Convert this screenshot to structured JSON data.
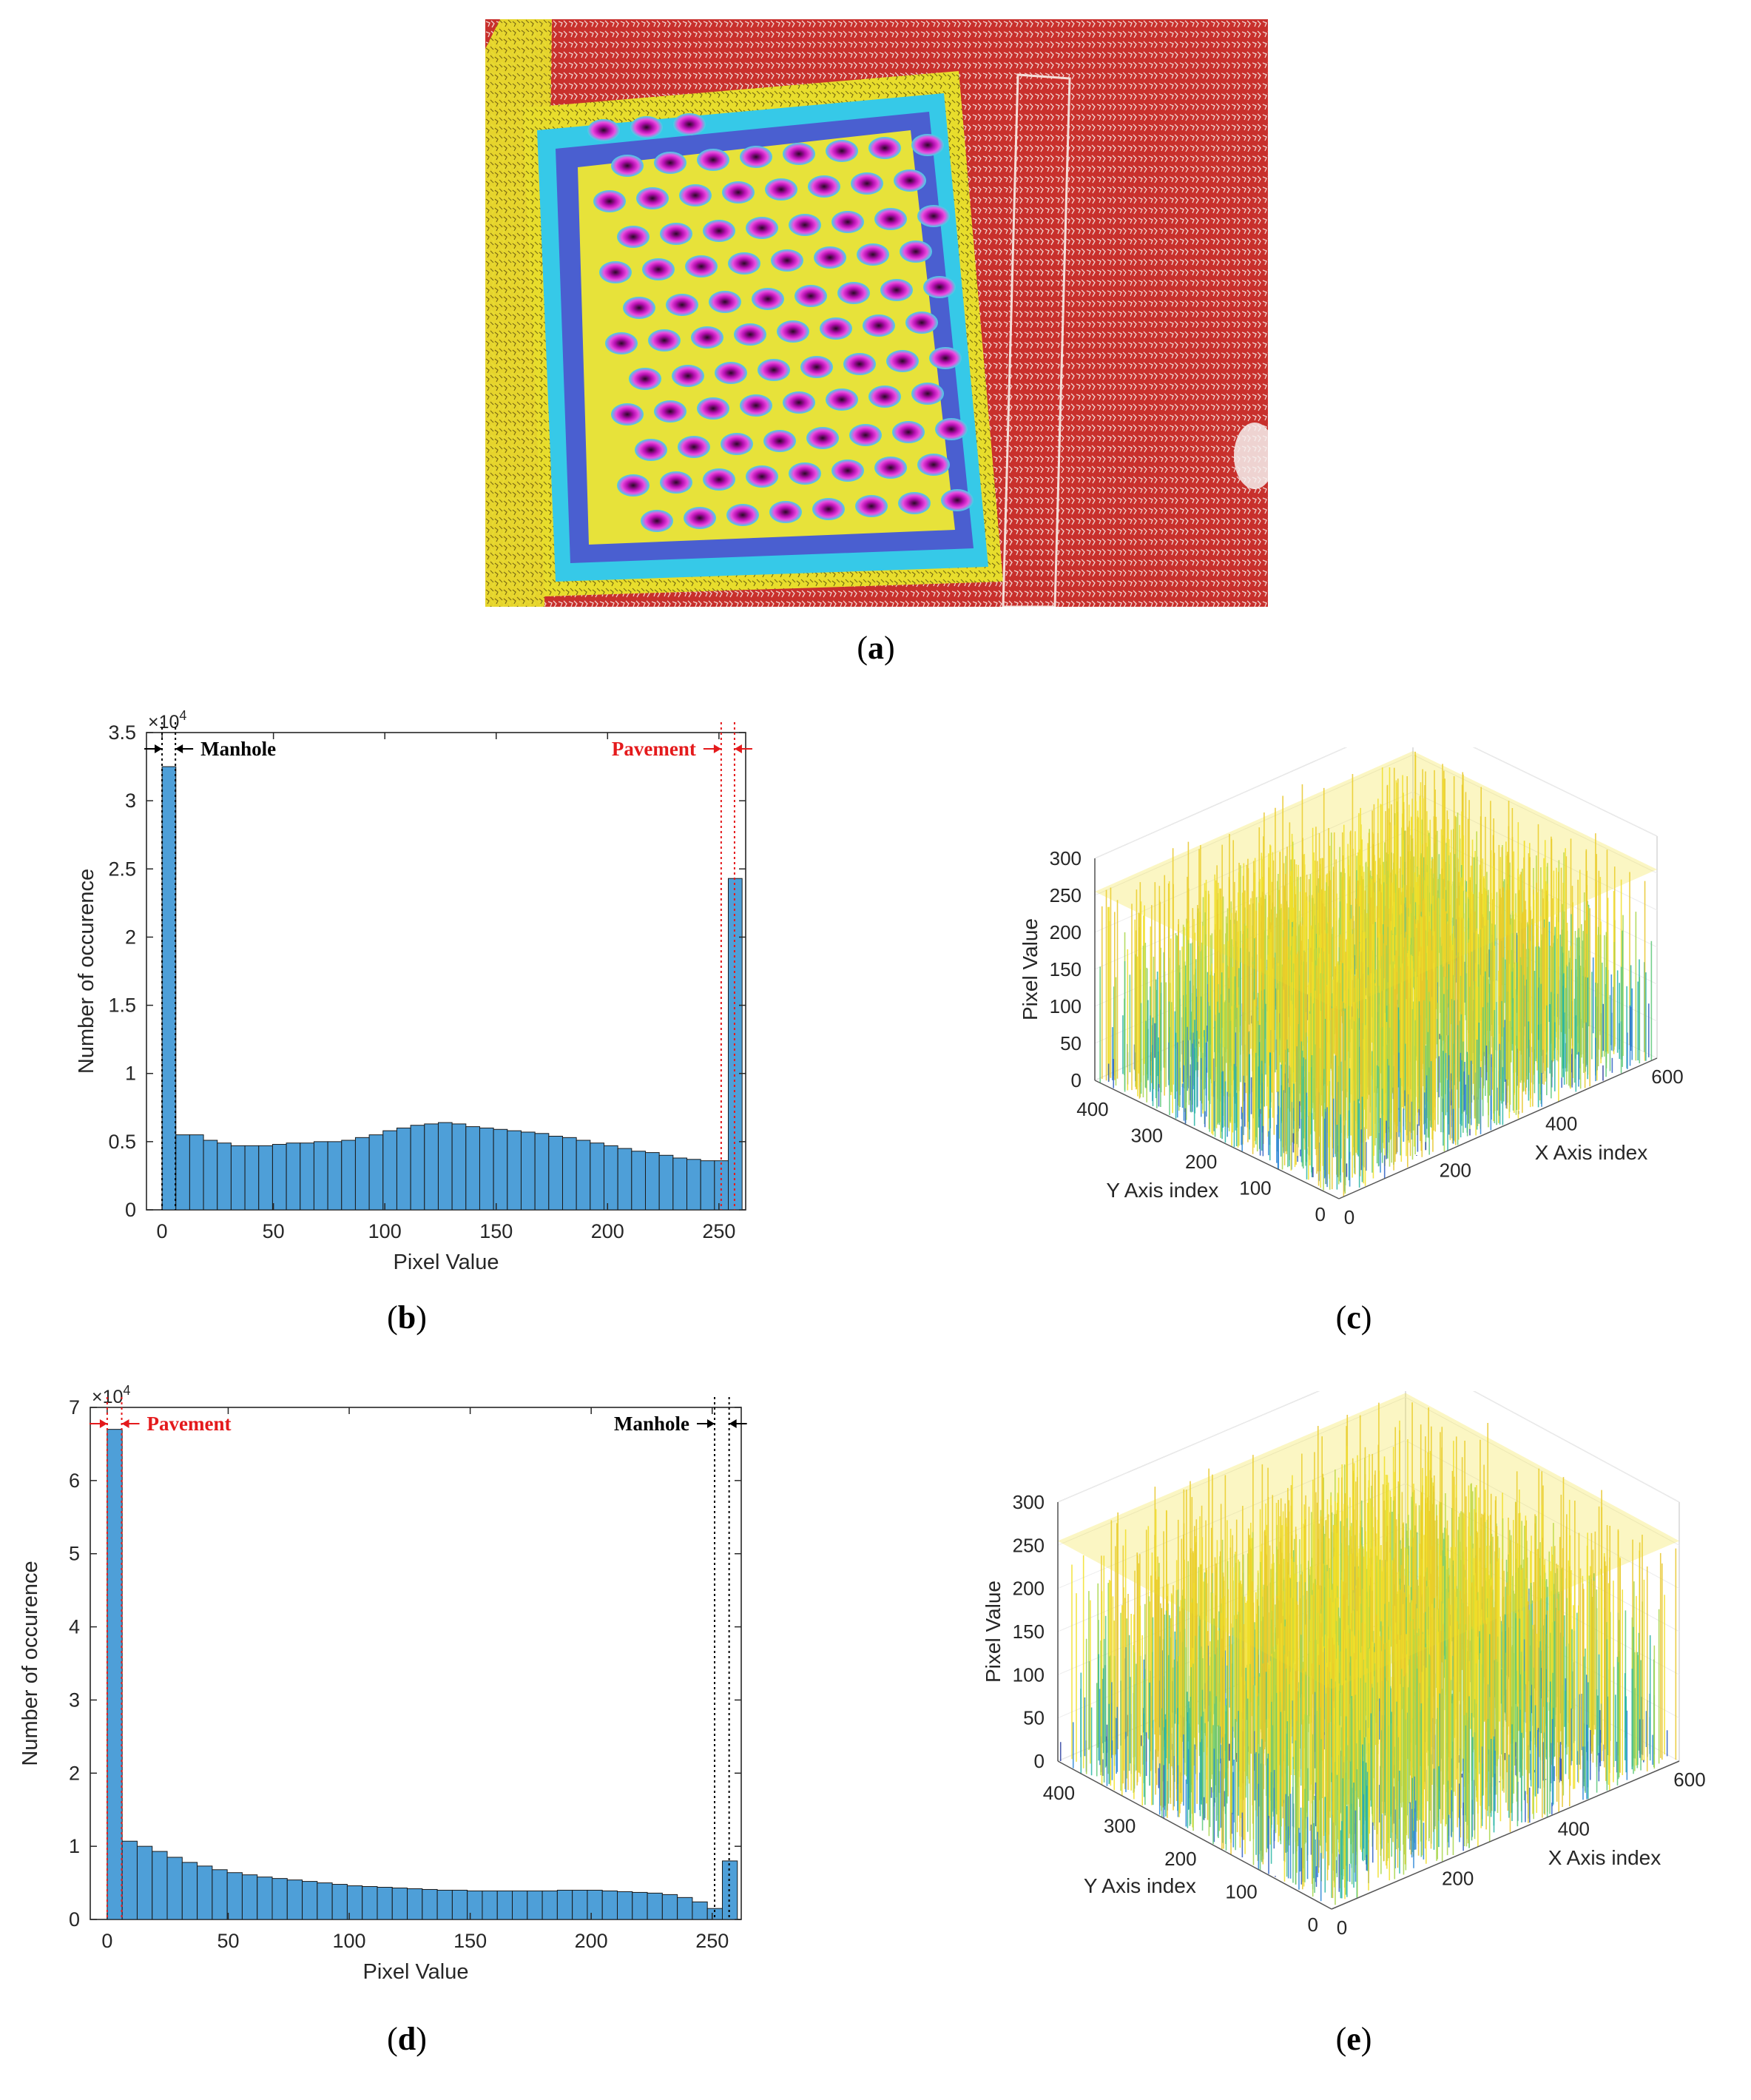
{
  "captions": {
    "a": {
      "open": "(",
      "letter": "a",
      "close": ")"
    },
    "b": {
      "open": "(",
      "letter": "b",
      "close": ")"
    },
    "c": {
      "open": "(",
      "letter": "c",
      "close": ")"
    },
    "d": {
      "open": "(",
      "letter": "d",
      "close": ")"
    },
    "e": {
      "open": "(",
      "letter": "e",
      "close": ")"
    }
  },
  "colors": {
    "bar_fill": "#4e9fd8",
    "bar_edge": "#1a1a1a",
    "manhole_marker": "#000000",
    "pavement_marker": "#e41a1c",
    "surface_low": "#2c3fa0",
    "surface_mid": "#27b5a5",
    "surface_high": "#f2e029",
    "thermal_bg": "#c8302c"
  },
  "chart_data": [
    {
      "id": "b",
      "type": "bar",
      "xlabel": "Pixel Value",
      "ylabel": "Number of occurence",
      "exponent_base": "×10",
      "exponent_power": "4",
      "xlim": [
        -7,
        262
      ],
      "ylim": [
        0,
        3.5
      ],
      "xticks": [
        0,
        50,
        100,
        150,
        200,
        250
      ],
      "yticks": [
        0,
        0.5,
        1,
        1.5,
        2,
        2.5,
        3,
        3.5
      ],
      "bin_width": 6.2,
      "bins_start": 0,
      "values": [
        3.25,
        0.55,
        0.55,
        0.51,
        0.49,
        0.47,
        0.47,
        0.47,
        0.48,
        0.49,
        0.49,
        0.5,
        0.5,
        0.51,
        0.53,
        0.55,
        0.58,
        0.6,
        0.62,
        0.63,
        0.64,
        0.63,
        0.61,
        0.6,
        0.59,
        0.58,
        0.57,
        0.56,
        0.54,
        0.53,
        0.51,
        0.49,
        0.47,
        0.45,
        0.43,
        0.42,
        0.4,
        0.38,
        0.37,
        0.36,
        0.36,
        2.43
      ],
      "annotations": [
        {
          "label": "Manhole",
          "color": "manhole",
          "range": [
            0,
            6
          ]
        },
        {
          "label": "Pavement",
          "color": "pavement",
          "range": [
            251,
            257
          ]
        }
      ]
    },
    {
      "id": "c",
      "type": "surface3d",
      "zlabel": "Pixel Value",
      "xlabel": "X Axis index",
      "ylabel": "Y Axis index",
      "zticks": [
        0,
        50,
        100,
        150,
        200,
        250,
        300
      ],
      "xticks": [
        0,
        200,
        400,
        600
      ],
      "yticks": [
        0,
        100,
        200,
        300,
        400
      ]
    },
    {
      "id": "d",
      "type": "bar",
      "xlabel": "Pixel Value",
      "ylabel": "Number of occurence",
      "exponent_base": "×10",
      "exponent_power": "4",
      "xlim": [
        -7,
        262
      ],
      "ylim": [
        0,
        7
      ],
      "xticks": [
        0,
        50,
        100,
        150,
        200,
        250
      ],
      "yticks": [
        0,
        1,
        2,
        3,
        4,
        5,
        6,
        7
      ],
      "bin_width": 6.2,
      "bins_start": 0,
      "values": [
        6.7,
        1.07,
        1.0,
        0.93,
        0.85,
        0.78,
        0.73,
        0.68,
        0.64,
        0.61,
        0.58,
        0.56,
        0.54,
        0.52,
        0.5,
        0.48,
        0.46,
        0.45,
        0.44,
        0.43,
        0.42,
        0.41,
        0.4,
        0.4,
        0.39,
        0.39,
        0.39,
        0.39,
        0.39,
        0.39,
        0.4,
        0.4,
        0.4,
        0.39,
        0.38,
        0.37,
        0.36,
        0.34,
        0.3,
        0.24,
        0.15,
        0.8
      ],
      "annotations": [
        {
          "label": "Pavement",
          "color": "pavement",
          "range": [
            0,
            6
          ]
        },
        {
          "label": "Manhole",
          "color": "manhole",
          "range": [
            251,
            257
          ]
        }
      ]
    },
    {
      "id": "e",
      "type": "surface3d",
      "zlabel": "Pixel Value",
      "xlabel": "X Axis index",
      "ylabel": "Y Axis index",
      "zticks": [
        0,
        50,
        100,
        150,
        200,
        250,
        300
      ],
      "xticks": [
        0,
        200,
        400,
        600
      ],
      "yticks": [
        0,
        100,
        200,
        300,
        400
      ]
    }
  ]
}
